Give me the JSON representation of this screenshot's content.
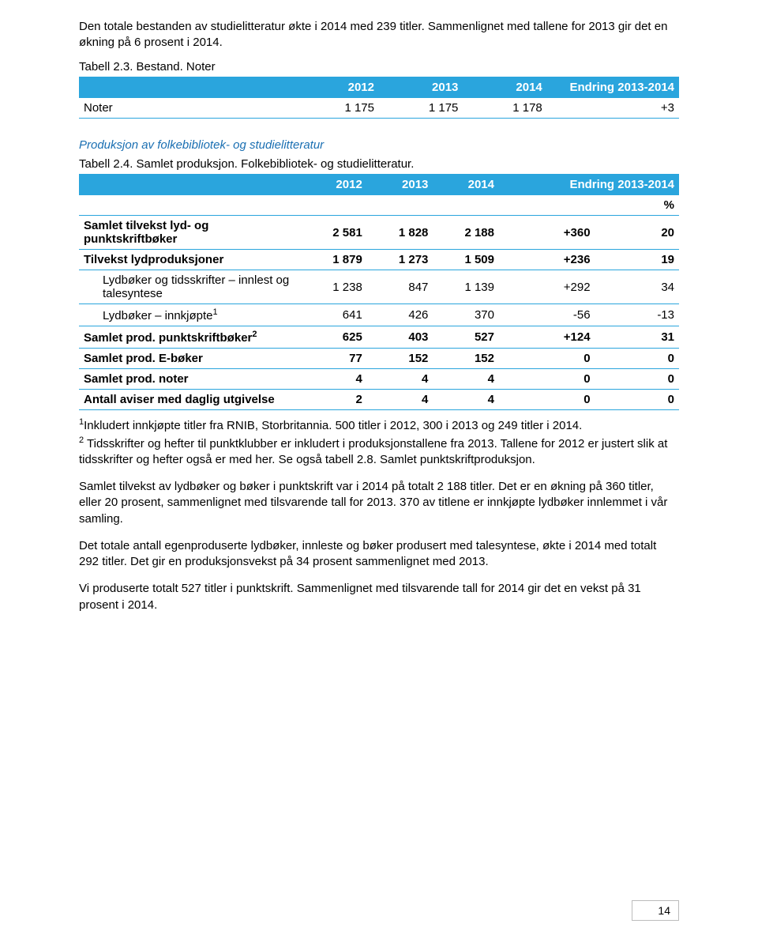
{
  "intro": "Den totale bestanden av studielitteratur økte i 2014 med 239 titler. Sammenlignet med tallene for 2013 gir det en økning på 6 prosent i 2014.",
  "table1": {
    "caption": "Tabell 2.3. Bestand. Noter",
    "head": [
      "",
      "2012",
      "2013",
      "2014",
      "Endring 2013-2014"
    ],
    "rows": [
      [
        "Noter",
        "1 175",
        "1 175",
        "1 178",
        "+3"
      ]
    ]
  },
  "section_title": "Produksjon av folkebibliotek- og studielitteratur",
  "table2": {
    "caption": "Tabell 2.4. Samlet produksjon. Folkebibliotek- og studielitteratur.",
    "head": [
      "",
      "2012",
      "2013",
      "2014",
      "Endring 2013-2014"
    ],
    "percent_label": "%",
    "rows": [
      {
        "label": "Samlet tilvekst lyd- og punktskriftbøker",
        "cells": [
          "2 581",
          "1 828",
          "2 188",
          "+360",
          "20"
        ],
        "bold": true,
        "indent": false
      },
      {
        "label": "Tilvekst lydproduksjoner",
        "cells": [
          "1 879",
          "1 273",
          "1 509",
          "+236",
          "19"
        ],
        "bold": true,
        "indent": false
      },
      {
        "label": "Lydbøker og tidsskrifter – innlest og talesyntese",
        "cells": [
          "1 238",
          "847",
          "1 139",
          "+292",
          "34"
        ],
        "bold": false,
        "indent": true
      },
      {
        "label": "Lydbøker – innkjøpte",
        "sup": "1",
        "cells": [
          "641",
          "426",
          "370",
          "-56",
          "-13"
        ],
        "bold": false,
        "indent": true
      },
      {
        "label": "Samlet prod. punktskriftbøker",
        "sup": "2",
        "cells": [
          "625",
          "403",
          "527",
          "+124",
          "31"
        ],
        "bold": true,
        "indent": false
      },
      {
        "label": "Samlet prod. E-bøker",
        "cells": [
          "77",
          "152",
          "152",
          "0",
          "0"
        ],
        "bold": true,
        "indent": false
      },
      {
        "label": "Samlet prod. noter",
        "cells": [
          "4",
          "4",
          "4",
          "0",
          "0"
        ],
        "bold": true,
        "indent": false
      },
      {
        "label": "Antall aviser med daglig utgivelse",
        "cells": [
          "2",
          "4",
          "4",
          "0",
          "0"
        ],
        "bold": true,
        "indent": false
      }
    ]
  },
  "footnote1_prefix": "1",
  "footnote1": "Inkludert innkjøpte titler fra RNIB, Storbritannia. 500 titler i 2012, 300 i 2013 og 249 titler i 2014.",
  "footnote2_prefix": "2",
  "footnote2": " Tidsskrifter og hefter til punktklubber er inkludert i produksjonstallene fra 2013. Tallene for 2012 er justert slik at tidsskrifter og hefter også er med her. Se også tabell 2.8. Samlet punktskriftproduksjon.",
  "para2": "Samlet tilvekst av lydbøker og bøker i punktskrift var i 2014 på totalt 2 188 titler. Det er en økning på 360 titler, eller 20 prosent, sammenlignet med tilsvarende tall for 2013. 370 av titlene er innkjøpte lydbøker innlemmet i vår samling.",
  "para3": "Det totale antall egenproduserte lydbøker, innleste og bøker produsert med talesyntese, økte i 2014 med totalt 292 titler. Det gir en produksjonsvekst på 34 prosent sammenlignet med 2013.",
  "para4": "Vi produserte totalt 527 titler i punktskrift. Sammenlignet med tilsvarende tall for 2014 gir det en vekst på 31 prosent i 2014.",
  "page_number": "14",
  "colors": {
    "accent": "#2aa5dd",
    "section_title": "#1a6fb2"
  },
  "col_widths": {
    "t1": [
      "36%",
      "14%",
      "14%",
      "14%",
      "22%"
    ],
    "t2": [
      "36%",
      "12%",
      "11%",
      "11%",
      "16%",
      "14%"
    ]
  }
}
